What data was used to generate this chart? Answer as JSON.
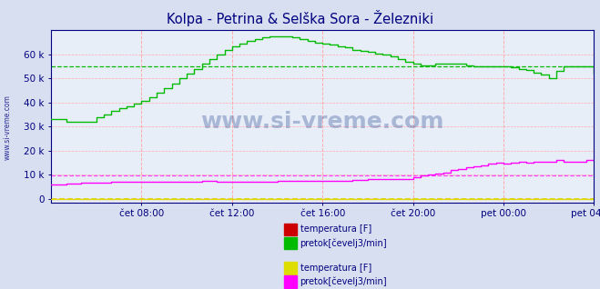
{
  "title": "Kolpa - Petrina & Selška Sora - Železniki",
  "title_color": "#000080",
  "bg_color": "#d8dff0",
  "plot_bg_color": "#e8eef8",
  "xlim_min": 0,
  "xlim_max": 288,
  "ylim_min": -1500,
  "ylim_max": 70000,
  "yticks": [
    0,
    10000,
    20000,
    30000,
    40000,
    50000,
    60000
  ],
  "ytick_labels": [
    "0",
    "10 k",
    "20 k",
    "30 k",
    "40 k",
    "50 k",
    "60 k"
  ],
  "xtick_positions": [
    48,
    96,
    144,
    192,
    240,
    288
  ],
  "xtick_labels": [
    "čet 08:00",
    "čet 12:00",
    "čet 16:00",
    "čet 20:00",
    "pet 00:00",
    "pet 04:00"
  ],
  "vgrid_color": "#ffaaaa",
  "hgrid_color": "#ffaaaa",
  "hline_green_y": 55000,
  "hline_green_color": "#00bb00",
  "hline_magenta_y": 9500,
  "hline_magenta_color": "#ff44ff",
  "hline_yellow_y": 0,
  "hline_yellow_color": "#dddd00",
  "hline_red_y": 0,
  "hline_red_color": "#cc0000",
  "watermark": "www.si-vreme.com",
  "watermark_color": "#1a3a8a",
  "legend_items": [
    {
      "label": "temperatura [F]",
      "color": "#cc0000"
    },
    {
      "label": "pretok[čevelj3/min]",
      "color": "#00bb00"
    },
    {
      "label": "temperatura [F]",
      "color": "#dddd00"
    },
    {
      "label": "pretok[čevelj3/min]",
      "color": "#ff00ff"
    }
  ],
  "green_line_x": [
    0,
    8,
    16,
    24,
    28,
    32,
    36,
    40,
    44,
    48,
    52,
    56,
    60,
    64,
    68,
    72,
    76,
    80,
    84,
    88,
    92,
    96,
    100,
    104,
    108,
    112,
    116,
    120,
    124,
    128,
    132,
    136,
    140,
    144,
    148,
    152,
    156,
    160,
    164,
    168,
    172,
    176,
    180,
    184,
    188,
    192,
    196,
    200,
    204,
    208,
    212,
    216,
    220,
    224,
    228,
    232,
    236,
    240,
    244,
    248,
    252,
    256,
    260,
    264,
    268,
    272,
    276,
    280,
    284,
    288
  ],
  "green_line_y": [
    33000,
    32000,
    32000,
    34000,
    35000,
    36500,
    37500,
    38500,
    39500,
    40500,
    42000,
    44000,
    46000,
    48000,
    50000,
    52000,
    54000,
    56000,
    58000,
    60000,
    62000,
    63500,
    64500,
    65500,
    66500,
    67000,
    67500,
    67500,
    67500,
    67000,
    66500,
    65500,
    65000,
    64500,
    64000,
    63500,
    63000,
    62000,
    61500,
    61000,
    60500,
    60000,
    59000,
    58000,
    57000,
    56000,
    55500,
    55500,
    56000,
    56000,
    56000,
    56000,
    55500,
    55000,
    55000,
    55000,
    55000,
    55000,
    54500,
    54000,
    53500,
    52500,
    51500,
    50000,
    53000,
    55000,
    55000,
    55000,
    55000,
    52000
  ],
  "magenta_line_x": [
    0,
    8,
    16,
    24,
    32,
    40,
    48,
    56,
    64,
    72,
    80,
    88,
    96,
    104,
    112,
    120,
    128,
    136,
    144,
    152,
    160,
    168,
    176,
    184,
    192,
    196,
    200,
    204,
    208,
    212,
    216,
    220,
    224,
    228,
    232,
    236,
    240,
    244,
    248,
    252,
    256,
    260,
    264,
    268,
    272,
    276,
    280,
    284,
    288
  ],
  "magenta_line_y": [
    6000,
    6200,
    6500,
    6800,
    7000,
    7000,
    7000,
    7000,
    7000,
    7200,
    7300,
    7200,
    7000,
    7200,
    7200,
    7300,
    7400,
    7500,
    7500,
    7600,
    7700,
    8000,
    8000,
    8200,
    9000,
    9500,
    10000,
    10500,
    11000,
    12000,
    12500,
    13000,
    13500,
    14000,
    14500,
    15000,
    14500,
    15000,
    15500,
    15000,
    15200,
    15200,
    15500,
    16000,
    15200,
    15200,
    15500,
    16000,
    16000
  ],
  "axis_color": "#000080",
  "tick_color": "#000080",
  "tick_fontsize": 7.5,
  "title_fontsize": 10.5
}
